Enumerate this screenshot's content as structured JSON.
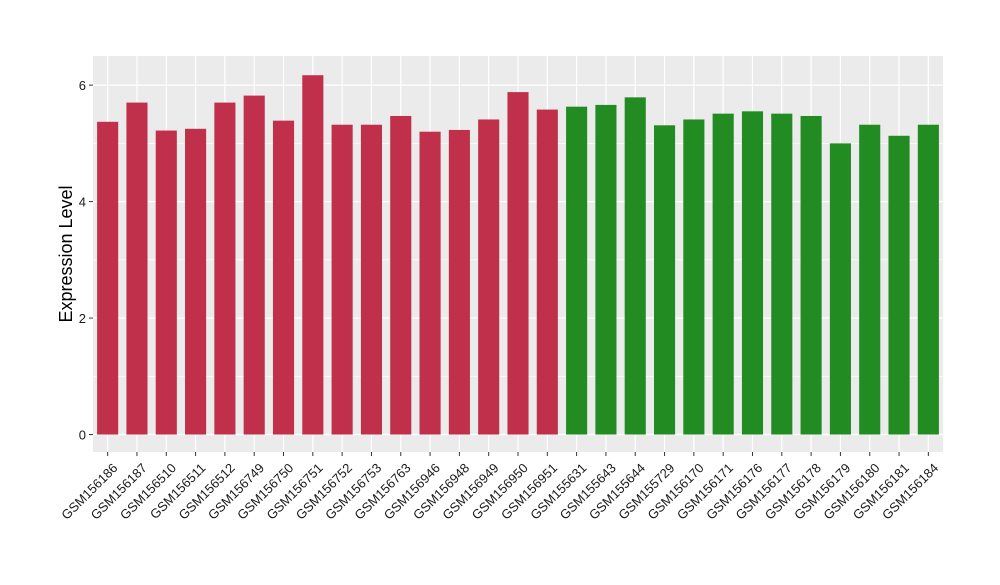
{
  "chart_data": {
    "type": "bar",
    "title": "",
    "xlabel": "",
    "ylabel": "Expression Level",
    "ylim": [
      -0.3,
      6.5
    ],
    "yticks": [
      0,
      2,
      4,
      6
    ],
    "grid": true,
    "colors": {
      "panel_bg": "#ebebeb",
      "grid_major": "#ffffff",
      "group_1": "#c0304a",
      "group_2": "#228b22",
      "axis_text": "#1a1a1a"
    },
    "categories": [
      "GSM156186",
      "GSM156187",
      "GSM156510",
      "GSM156511",
      "GSM156512",
      "GSM156749",
      "GSM156750",
      "GSM156751",
      "GSM156752",
      "GSM156753",
      "GSM156763",
      "GSM156946",
      "GSM156948",
      "GSM156949",
      "GSM156950",
      "GSM156951",
      "GSM155631",
      "GSM155643",
      "GSM155644",
      "GSM155729",
      "GSM156170",
      "GSM156171",
      "GSM156176",
      "GSM156177",
      "GSM156178",
      "GSM156179",
      "GSM156180",
      "GSM156181",
      "GSM156184"
    ],
    "values": [
      5.37,
      5.7,
      5.22,
      5.25,
      5.7,
      5.82,
      5.39,
      6.17,
      5.32,
      5.32,
      5.47,
      5.2,
      5.23,
      5.41,
      5.88,
      5.58,
      5.63,
      5.66,
      5.79,
      5.31,
      5.41,
      5.51,
      5.55,
      5.51,
      5.47,
      5.0,
      5.32,
      5.13,
      5.32
    ],
    "groups": [
      1,
      1,
      1,
      1,
      1,
      1,
      1,
      1,
      1,
      1,
      1,
      1,
      1,
      1,
      1,
      1,
      2,
      2,
      2,
      2,
      2,
      2,
      2,
      2,
      2,
      2,
      2,
      2,
      2
    ]
  }
}
